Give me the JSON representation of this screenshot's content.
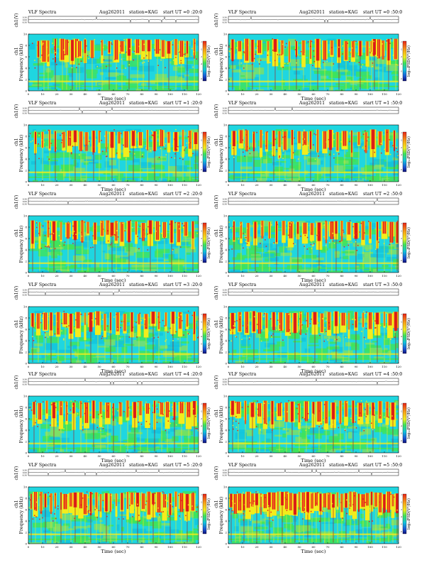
{
  "page": {
    "colorbar_label": "log₁₀PSD(V²/Hz)",
    "colors": {
      "background": "#1fd6e0",
      "noise_cyan": "#12c3dd",
      "noise_green": "#3ee35a",
      "noise_mid": "#7fe063",
      "yellow": "#f3ec1c",
      "red": "#e7241a",
      "dark_red": "#a80f16",
      "trace": "#222222"
    }
  },
  "chart_data": [
    {
      "type": "heatmap",
      "panel": "0-20",
      "title_left": "VLF Spectra",
      "title_date": "Aug262011",
      "title_station": "station=KAG",
      "title_start": "start  UT =0 :20:0",
      "trace_label": "ch1(V)",
      "trace_ticks": [
        "0.30",
        "0.00",
        "-0.30"
      ],
      "ylabel": "Frequency (kHz)",
      "ylabel_small": "ch1",
      "xlabel": "Time (sec)",
      "xticks": [
        0,
        10,
        20,
        30,
        40,
        50,
        60,
        70,
        80,
        90,
        100,
        110,
        120
      ],
      "yticks": [
        0,
        2,
        4,
        6,
        8,
        10
      ],
      "xlim": [
        0,
        120
      ],
      "ylim": [
        0,
        10
      ],
      "colorbar_label": "log₁₀PSD(V²/Hz)",
      "colorbar_ticks": [
        "-1",
        "-2",
        "-3",
        "-4",
        "-5",
        "-6"
      ],
      "trace_spikes": [
        48,
        72,
        85,
        94,
        96,
        104
      ],
      "strong_x": [
        7,
        11,
        14,
        19,
        24,
        27,
        31,
        34,
        36,
        40,
        45,
        52,
        57,
        62,
        66,
        71,
        77,
        81,
        85,
        91,
        95,
        99,
        104,
        108,
        112,
        117
      ]
    },
    {
      "type": "heatmap",
      "panel": "0-50",
      "title_left": "VLF Spectra",
      "title_date": "Aug262011",
      "title_station": "station=KAG",
      "title_start": "start  UT =0 :50:0",
      "trace_label": "ch1(V)",
      "trace_ticks": [
        "0.30",
        "0.00",
        "-0.30"
      ],
      "ylabel": "Frequency (kHz)",
      "ylabel_small": "ch1",
      "xlabel": "Time (sec)",
      "xticks": [
        0,
        10,
        20,
        30,
        40,
        50,
        60,
        70,
        80,
        90,
        100,
        110,
        120
      ],
      "yticks": [
        0,
        2,
        4,
        6,
        8,
        10
      ],
      "xlim": [
        0,
        120
      ],
      "ylim": [
        0,
        10
      ],
      "colorbar_label": "log₁₀PSD(V²/Hz)",
      "colorbar_ticks": [
        "-1",
        "-2",
        "-3",
        "-4",
        "-5",
        "-6"
      ],
      "trace_spikes": [
        16,
        68,
        70,
        100,
        102
      ],
      "strong_x": [
        3,
        8,
        13,
        17,
        22,
        28,
        33,
        38,
        43,
        48,
        53,
        58,
        63,
        68,
        73,
        78,
        83,
        88,
        93,
        98,
        101,
        103,
        106,
        109,
        113,
        118
      ]
    },
    {
      "type": "heatmap",
      "panel": "1-20",
      "title_left": "VLF Spectra",
      "title_date": "Aug262011",
      "title_station": "station=KAG",
      "title_start": "start  UT =1 :20:0",
      "trace_label": "ch1(V)",
      "trace_ticks": [
        "0.30",
        "0.00",
        "-0.30"
      ],
      "ylabel": "Frequency (kHz)",
      "ylabel_small": "ch1",
      "xlabel": "Time (sec)",
      "xticks": [
        0,
        10,
        20,
        30,
        40,
        50,
        60,
        70,
        80,
        90,
        100,
        110,
        120
      ],
      "yticks": [
        0,
        2,
        4,
        6,
        8,
        10
      ],
      "xlim": [
        0,
        120
      ],
      "ylim": [
        0,
        10
      ],
      "colorbar_label": "log₁₀PSD(V²/Hz)",
      "colorbar_ticks": [
        "-1",
        "-2",
        "-3",
        "-4",
        "-5",
        "-6"
      ],
      "trace_spikes": [
        36,
        38,
        55,
        59
      ],
      "strong_x": [
        5,
        10,
        15,
        19,
        25,
        29,
        33,
        37,
        41,
        46,
        50,
        55,
        59,
        64,
        69,
        74,
        79,
        84,
        89,
        94,
        99,
        104,
        109,
        114,
        118
      ]
    },
    {
      "type": "heatmap",
      "panel": "1-50",
      "title_left": "VLF Spectra",
      "title_date": "Aug262011",
      "title_station": "station=KAG",
      "title_start": "start  UT =1 :50:0",
      "trace_label": "ch1(V)",
      "trace_ticks": [
        "0.30",
        "0.00",
        "-0.30"
      ],
      "ylabel": "Frequency (kHz)",
      "ylabel_small": "ch1",
      "xlabel": "Time (sec)",
      "xticks": [
        0,
        10,
        20,
        30,
        40,
        50,
        60,
        70,
        80,
        90,
        100,
        110,
        120
      ],
      "yticks": [
        0,
        2,
        4,
        6,
        8,
        10
      ],
      "xlim": [
        0,
        120
      ],
      "ylim": [
        0,
        10
      ],
      "colorbar_label": "log₁₀PSD(V²/Hz)",
      "colorbar_ticks": [
        "-1",
        "-2",
        "-3",
        "-4",
        "-5",
        "-6"
      ],
      "trace_spikes": [
        33,
        45
      ],
      "strong_x": [
        4,
        9,
        13,
        18,
        23,
        27,
        32,
        36,
        40,
        45,
        50,
        54,
        58,
        63,
        68,
        72,
        77,
        82,
        87,
        92,
        97,
        102,
        107,
        112,
        117
      ]
    },
    {
      "type": "heatmap",
      "panel": "2-20",
      "title_left": "VLF Spectra",
      "title_date": "Aug262011",
      "title_station": "station=KAG",
      "title_start": "start  UT =2 :20:0",
      "trace_label": "ch1(V)",
      "trace_ticks": [
        "0.30",
        "0.00",
        "-0.30"
      ],
      "ylabel": "Frequency (kHz)",
      "ylabel_small": "ch1",
      "xlabel": "Time (sec)",
      "xticks": [
        0,
        10,
        20,
        30,
        40,
        50,
        60,
        70,
        80,
        90,
        100,
        110,
        120
      ],
      "yticks": [
        0,
        2,
        4,
        6,
        8,
        10
      ],
      "xlim": [
        0,
        120
      ],
      "ylim": [
        0,
        10
      ],
      "colorbar_label": "log₁₀PSD(V²/Hz)",
      "colorbar_ticks": [
        "-1",
        "-2",
        "-3",
        "-4",
        "-5",
        "-6"
      ],
      "trace_spikes": [
        28,
        62
      ],
      "strong_x": [
        3,
        8,
        14,
        18,
        23,
        28,
        33,
        38,
        42,
        47,
        52,
        56,
        59,
        62,
        66,
        71,
        76,
        81,
        86,
        91,
        96,
        101,
        106,
        111,
        116
      ]
    },
    {
      "type": "heatmap",
      "panel": "2-50",
      "title_left": "VLF Spectra",
      "title_date": "Aug262011",
      "title_station": "station=KAG",
      "title_start": "start  UT =2 :50:0",
      "trace_label": "ch1(V)",
      "trace_ticks": [
        "0.30",
        "0.00",
        "-0.30"
      ],
      "ylabel": "Frequency (kHz)",
      "ylabel_small": "ch1",
      "xlabel": "Time (sec)",
      "xticks": [
        0,
        10,
        20,
        30,
        40,
        50,
        60,
        70,
        80,
        90,
        100,
        110,
        120
      ],
      "yticks": [
        0,
        2,
        4,
        6,
        8,
        10
      ],
      "xlim": [
        0,
        120
      ],
      "ylim": [
        0,
        10
      ],
      "colorbar_label": "log₁₀PSD(V²/Hz)",
      "colorbar_ticks": [
        "-1",
        "-2",
        "-3",
        "-4",
        "-5",
        "-6"
      ],
      "trace_spikes": [
        103,
        105
      ],
      "strong_x": [
        4,
        9,
        14,
        19,
        24,
        29,
        34,
        39,
        44,
        49,
        54,
        59,
        64,
        69,
        73,
        76,
        80,
        85,
        90,
        95,
        100,
        105,
        110,
        115,
        119
      ]
    },
    {
      "type": "heatmap",
      "panel": "3-20",
      "title_left": "VLF Spectra",
      "title_date": "Aug262011",
      "title_station": "station=KAG",
      "title_start": "start  UT =3 :20:0",
      "trace_label": "ch1(V)",
      "trace_ticks": [
        "0.30",
        "0.00",
        "-0.30"
      ],
      "ylabel": "Frequency (kHz)",
      "ylabel_small": "ch1",
      "xlabel": "Time (sec)",
      "xticks": [
        0,
        10,
        20,
        30,
        40,
        50,
        60,
        70,
        80,
        90,
        100,
        110,
        120
      ],
      "yticks": [
        0,
        2,
        4,
        6,
        8,
        10
      ],
      "xlim": [
        0,
        120
      ],
      "ylim": [
        0,
        10
      ],
      "colorbar_label": "log₁₀PSD(V²/Hz)",
      "colorbar_ticks": [
        "-1",
        "-2",
        "-3",
        "-4",
        "-5",
        "-6"
      ],
      "trace_spikes": [
        12,
        50,
        60,
        64,
        101
      ],
      "strong_x": [
        3,
        7,
        12,
        16,
        21,
        26,
        30,
        35,
        40,
        44,
        49,
        54,
        58,
        63,
        68,
        73,
        78,
        83,
        88,
        92,
        97,
        102,
        107,
        112,
        117
      ]
    },
    {
      "type": "heatmap",
      "panel": "3-50",
      "title_left": "VLF Spectra",
      "title_date": "Aug262011",
      "title_station": "station=KAG",
      "title_start": "start  UT =3 :50:0",
      "trace_label": "ch1(V)",
      "trace_ticks": [
        "0.30",
        "0.00",
        "-0.30"
      ],
      "ylabel": "Frequency (kHz)",
      "ylabel_small": "ch1",
      "xlabel": "Time (sec)",
      "xticks": [
        0,
        10,
        20,
        30,
        40,
        50,
        60,
        70,
        80,
        90,
        100,
        110,
        120
      ],
      "yticks": [
        0,
        2,
        4,
        6,
        8,
        10
      ],
      "xlim": [
        0,
        120
      ],
      "ylim": [
        0,
        10
      ],
      "colorbar_label": "log₁₀PSD(V²/Hz)",
      "colorbar_ticks": [
        "-1",
        "-2",
        "-3",
        "-4",
        "-5",
        "-6"
      ],
      "trace_spikes": [
        17,
        61
      ],
      "strong_x": [
        3,
        8,
        13,
        18,
        22,
        27,
        32,
        37,
        42,
        47,
        51,
        56,
        61,
        66,
        71,
        76,
        81,
        85,
        90,
        95,
        100,
        105,
        110,
        114,
        118
      ]
    },
    {
      "type": "heatmap",
      "panel": "4-20",
      "title_left": "VLF Spectra",
      "title_date": "Aug262011",
      "title_station": "station=KAG",
      "title_start": "start  UT =4 :20:0",
      "trace_label": "ch1(V)",
      "trace_ticks": [
        "0.30",
        "0.00",
        "-0.30"
      ],
      "ylabel": "Frequency (kHz)",
      "ylabel_small": "ch1",
      "xlabel": "Time (sec)",
      "xticks": [
        0,
        10,
        20,
        30,
        40,
        50,
        60,
        70,
        80,
        90,
        100,
        110,
        120
      ],
      "yticks": [
        0,
        2,
        4,
        6,
        8,
        10
      ],
      "xlim": [
        0,
        120
      ],
      "ylim": [
        0,
        10
      ],
      "colorbar_label": "log₁₀PSD(V²/Hz)",
      "colorbar_ticks": [
        "-1",
        "-2",
        "-3",
        "-4",
        "-5",
        "-6"
      ],
      "trace_spikes": [
        40,
        58,
        60,
        77,
        80
      ],
      "strong_x": [
        4,
        8,
        13,
        18,
        23,
        27,
        32,
        37,
        41,
        46,
        51,
        56,
        60,
        65,
        70,
        75,
        79,
        84,
        89,
        94,
        98,
        103,
        108,
        113,
        117
      ]
    },
    {
      "type": "heatmap",
      "panel": "4-50",
      "title_left": "VLF Spectra",
      "title_date": "Aug262011",
      "title_station": "station=KAG",
      "title_start": "start  UT =4 :50:0",
      "trace_label": "ch1(V)",
      "trace_ticks": [
        "0.30",
        "0.00",
        "-0.30"
      ],
      "ylabel": "Frequency (kHz)",
      "ylabel_small": "ch1",
      "xlabel": "Time (sec)",
      "xticks": [
        0,
        10,
        20,
        30,
        40,
        50,
        60,
        70,
        80,
        90,
        100,
        110,
        120
      ],
      "yticks": [
        0,
        2,
        4,
        6,
        8,
        10
      ],
      "xlim": [
        0,
        120
      ],
      "ylim": [
        0,
        10
      ],
      "colorbar_label": "log₁₀PSD(V²/Hz)",
      "colorbar_ticks": [
        "-1",
        "-2",
        "-3",
        "-4",
        "-5",
        "-6"
      ],
      "trace_spikes": [
        62,
        105
      ],
      "strong_x": [
        3,
        7,
        12,
        17,
        22,
        26,
        31,
        36,
        41,
        45,
        50,
        55,
        60,
        64,
        69,
        74,
        79,
        83,
        88,
        93,
        98,
        102,
        107,
        112,
        116
      ]
    },
    {
      "type": "heatmap",
      "panel": "5-20",
      "title_left": "VLF Spectra",
      "title_date": "Aug262011",
      "title_station": "station=KAG",
      "title_start": "start  UT =5 :20:0",
      "trace_label": "ch1(V)",
      "trace_ticks": [
        "0.30",
        "0.00",
        "-0.30"
      ],
      "ylabel": "Frequency (kHz)",
      "ylabel_small": "ch1",
      "xlabel": "Time (sec)",
      "xticks": [
        0,
        10,
        20,
        30,
        40,
        50,
        60,
        70,
        80,
        90,
        100,
        110,
        120
      ],
      "yticks": [
        0,
        2,
        4,
        6,
        8,
        10
      ],
      "xlim": [
        0,
        120
      ],
      "ylim": [
        0,
        10
      ],
      "colorbar_label": "log₁₀PSD(V²/Hz)",
      "colorbar_ticks": [
        "-1",
        "-2",
        "-3",
        "-4",
        "-5",
        "-6"
      ],
      "trace_spikes": [
        14,
        26,
        40,
        48,
        76,
        92
      ],
      "strong_x": [
        2,
        5,
        9,
        12,
        16,
        19,
        23,
        26,
        30,
        33,
        37,
        40,
        44,
        48,
        51,
        55,
        58,
        62,
        66,
        70,
        73,
        77,
        81,
        85,
        88,
        92,
        96,
        100,
        104,
        108,
        112,
        116
      ]
    },
    {
      "type": "heatmap",
      "panel": "5-50",
      "title_left": "VLF Spectra",
      "title_date": "Aug262011",
      "title_station": "station=KAG",
      "title_start": "start  UT =5 :50:0",
      "trace_label": "ch1(V)",
      "trace_ticks": [
        "0.30",
        "0.00",
        "-0.30"
      ],
      "ylabel": "Frequency (kHz)",
      "ylabel_small": "ch1",
      "xlabel": "Time (sec)",
      "xticks": [
        0,
        10,
        20,
        30,
        40,
        50,
        60,
        70,
        80,
        90,
        100,
        110,
        120
      ],
      "yticks": [
        0,
        2,
        4,
        6,
        8,
        10
      ],
      "xlim": [
        0,
        120
      ],
      "ylim": [
        0,
        10
      ],
      "colorbar_label": "log₁₀PSD(V²/Hz)",
      "colorbar_ticks": [
        "-1",
        "-2",
        "-3",
        "-4",
        "-5",
        "-6"
      ],
      "trace_spikes": [
        40,
        59,
        62,
        65,
        92,
        101
      ],
      "strong_x": [
        2,
        5,
        8,
        11,
        14,
        17,
        20,
        23,
        26,
        29,
        32,
        35,
        38,
        41,
        44,
        47,
        50,
        53,
        56,
        59,
        62,
        65,
        68,
        71,
        74,
        77,
        80,
        83,
        86,
        89,
        92,
        95,
        98,
        101,
        104,
        107,
        110,
        113,
        116,
        119
      ]
    }
  ]
}
